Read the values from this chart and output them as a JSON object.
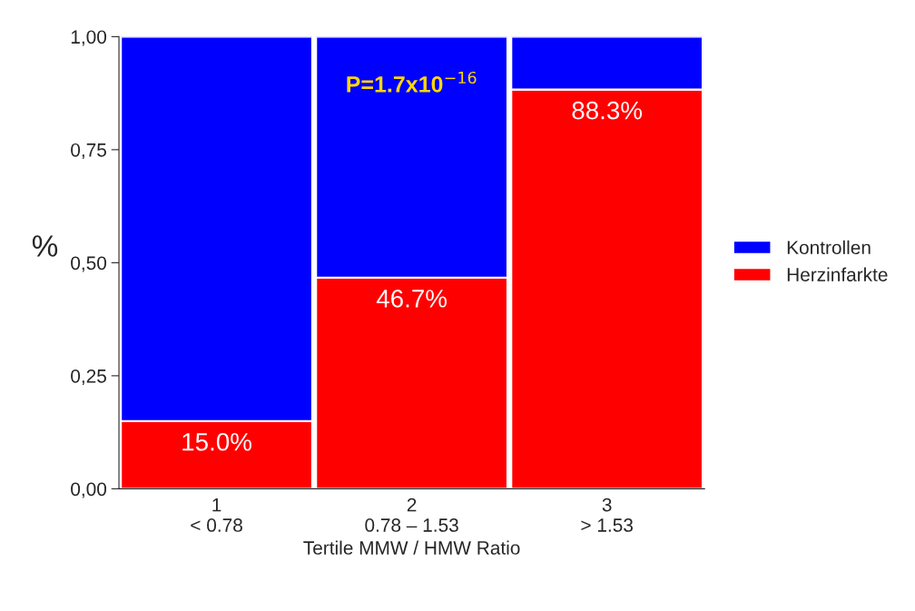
{
  "chart_data": {
    "type": "bar",
    "stacked": true,
    "categories": [
      "1\n< 0.78",
      "2\n0.78 – 1.53",
      "3\n> 1.53"
    ],
    "series": [
      {
        "name": "Herzinfarkte",
        "color": "#ff0000",
        "values": [
          0.15,
          0.467,
          0.883
        ],
        "value_labels": [
          "15.0%",
          "46.7%",
          "88.3%"
        ]
      },
      {
        "name": "Kontrollen",
        "color": "#0000ff",
        "values": [
          0.85,
          0.533,
          0.117
        ]
      }
    ],
    "xlabel": "Tertile MMW / HMW Ratio",
    "ylabel": "%",
    "ylim": [
      0,
      1
    ],
    "yticks": [
      {
        "value": 0,
        "label": "0,00"
      },
      {
        "value": 0.25,
        "label": "0,25"
      },
      {
        "value": 0.5,
        "label": "0,50"
      },
      {
        "value": 0.75,
        "label": "0,75"
      },
      {
        "value": 1,
        "label": "1,00"
      }
    ],
    "annotations": [
      "P=1.7x10$^{−16}$"
    ],
    "grid": false,
    "legend": "right"
  }
}
